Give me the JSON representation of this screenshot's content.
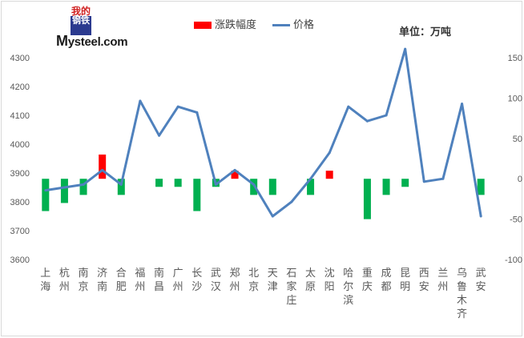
{
  "logo": {
    "mark_top": "我的",
    "mark_bottom": "钢铁",
    "text_prefix": "M",
    "text_rest": "ysteel.com"
  },
  "legend": {
    "bar_label": "涨跌幅度",
    "line_label": "价格"
  },
  "unit_label": "单位：万吨",
  "colors": {
    "line": "#4f81bd",
    "bar_up": "#ff0000",
    "bar_down": "#00b050",
    "axis_text": "#595959"
  },
  "chart_data": {
    "type": "bar+line",
    "categories": [
      "上海",
      "杭州",
      "南京",
      "济南",
      "合肥",
      "福州",
      "南昌",
      "广州",
      "长沙",
      "武汉",
      "郑州",
      "北京",
      "天津",
      "石家庄",
      "太原",
      "沈阳",
      "哈尔滨",
      "重庆",
      "成都",
      "昆明",
      "西安",
      "兰州",
      "乌鲁木齐",
      "武安"
    ],
    "left_axis": {
      "min": 3600,
      "max": 4300,
      "ticks": [
        3600,
        3700,
        3800,
        3900,
        4000,
        4100,
        4200,
        4300
      ]
    },
    "right_axis": {
      "min": -100,
      "max": 150,
      "ticks": [
        -100,
        -50,
        0,
        50,
        100,
        150
      ]
    },
    "series": [
      {
        "name": "价格",
        "type": "line",
        "axis": "left",
        "values": [
          3840,
          3850,
          3860,
          3910,
          3860,
          4150,
          4030,
          4130,
          4110,
          3860,
          3910,
          3860,
          3750,
          3800,
          3880,
          3970,
          4130,
          4080,
          4100,
          4330,
          3870,
          3880,
          4140,
          3750
        ]
      },
      {
        "name": "涨跌幅度",
        "type": "bar",
        "axis": "right",
        "values": [
          -40,
          -30,
          -20,
          30,
          -20,
          0,
          -10,
          -10,
          -40,
          -10,
          10,
          -20,
          -20,
          0,
          -20,
          10,
          0,
          -50,
          -20,
          -10,
          0,
          0,
          0,
          -20
        ]
      }
    ]
  }
}
